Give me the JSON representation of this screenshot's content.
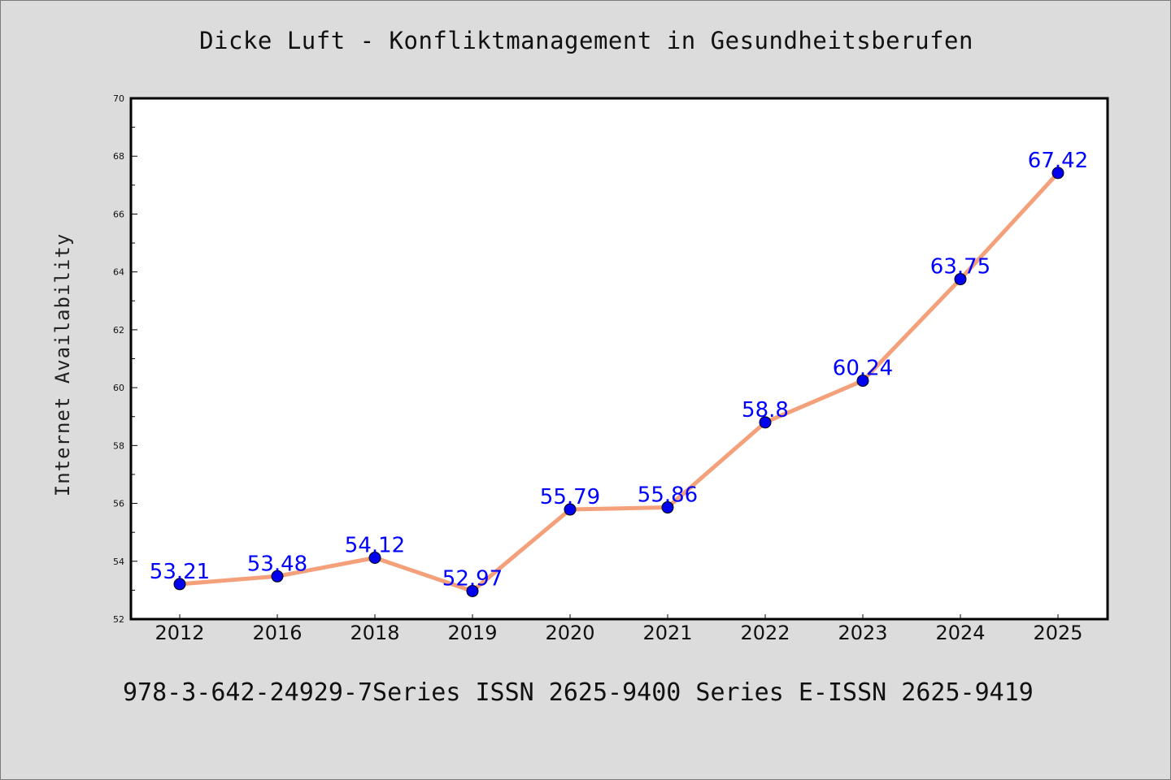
{
  "page": {
    "title": "Dicke Luft - Konfliktmanagement in Gesundheitsberufen",
    "footer": "978-3-642-24929-7Series ISSN 2625-9400 Series E-ISSN 2625-9419"
  },
  "chart_data": {
    "type": "line",
    "title": "Dicke Luft - Konfliktmanagement in Gesundheitsberufen",
    "xlabel": "",
    "ylabel": "Internet Availability",
    "categories": [
      "2012",
      "2016",
      "2018",
      "2019",
      "2020",
      "2021",
      "2022",
      "2023",
      "2024",
      "2025"
    ],
    "series": [
      {
        "values": [
          53.21,
          53.48,
          54.12,
          52.97,
          55.79,
          55.86,
          58.8,
          60.24,
          63.75,
          67.42
        ],
        "labels": [
          "53.21",
          "53.48",
          "54.12",
          "52.97",
          "55.79",
          "55.86",
          "58.8",
          "60.24",
          "63.75",
          "67.42"
        ],
        "line_color": "#f4a07a",
        "marker_color": "#0000ee",
        "label_color": "#0000ff"
      }
    ],
    "ylim": [
      52,
      70
    ],
    "yticks": [
      "52",
      "54",
      "56",
      "58",
      "60",
      "62",
      "64",
      "66",
      "68",
      "70"
    ],
    "grid": false,
    "legend": "none"
  }
}
